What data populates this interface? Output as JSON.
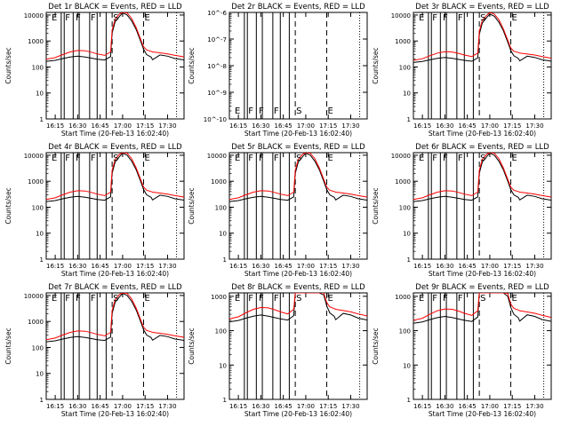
{
  "figure": {
    "panels": [
      {
        "title": "Det 1r BLACK = Events, RED = LLD",
        "ylabel": "Counts/sec",
        "xlabel": "Start Time (20-Feb-13 16:02:40)",
        "ytick_labels": [
          "1",
          "10",
          "100",
          "1000",
          "10000"
        ],
        "xtick_labels": [
          "16:15",
          "16:30",
          "16:45",
          "17:00",
          "17:15",
          "17:30"
        ],
        "markers": [
          "E",
          "F",
          "F",
          "F",
          "S",
          "E"
        ],
        "has_data": true,
        "bump": 1.0
      },
      {
        "title": "Det 2r BLACK = Events, RED = LLD",
        "ylabel": "Counts/sec",
        "xlabel": "Start Time (20-Feb-13 16:02:40)",
        "ytick_labels": [
          "10^-10",
          "10^-9",
          "10^-8",
          "10^-7",
          "10^-6"
        ],
        "xtick_labels": [
          "16:15",
          "16:30",
          "16:45",
          "17:00",
          "17:15",
          "17:30"
        ],
        "markers": [
          "E",
          "F",
          "F",
          "F",
          "S",
          "E"
        ],
        "has_data": false,
        "bump": 0
      },
      {
        "title": "Det 3r BLACK = Events, RED = LLD",
        "ylabel": "Counts/sec",
        "xlabel": "Start Time (20-Feb-13 16:02:40)",
        "ytick_labels": [
          "1",
          "10",
          "100",
          "1000",
          "10000"
        ],
        "xtick_labels": [
          "16:15",
          "16:30",
          "16:45",
          "17:00",
          "17:15",
          "17:30"
        ],
        "markers": [
          "E",
          "F",
          "F",
          "F",
          "S",
          "E"
        ],
        "has_data": true,
        "bump": 0.9
      },
      {
        "title": "Det 4r BLACK = Events, RED = LLD",
        "ylabel": "Counts/sec",
        "xlabel": "Start Time (20-Feb-13 16:02:40)",
        "ytick_labels": [
          "1",
          "10",
          "100",
          "1000",
          "10000"
        ],
        "xtick_labels": [
          "16:15",
          "16:30",
          "16:45",
          "17:00",
          "17:15",
          "17:30"
        ],
        "markers": [
          "E",
          "F",
          "F",
          "F",
          "S",
          "E"
        ],
        "has_data": true,
        "bump": 1.0
      },
      {
        "title": "Det 5r BLACK = Events, RED = LLD",
        "ylabel": "Counts/sec",
        "xlabel": "Start Time (20-Feb-13 16:02:40)",
        "ytick_labels": [
          "1",
          "10",
          "100",
          "1000",
          "10000"
        ],
        "xtick_labels": [
          "16:15",
          "16:30",
          "16:45",
          "17:00",
          "17:15",
          "17:30"
        ],
        "markers": [
          "E",
          "F",
          "F",
          "F",
          "S",
          "E"
        ],
        "has_data": true,
        "bump": 1.0
      },
      {
        "title": "Det 6r BLACK = Events, RED = LLD",
        "ylabel": "Counts/sec",
        "xlabel": "Start Time (20-Feb-13 16:02:40)",
        "ytick_labels": [
          "1",
          "10",
          "100",
          "1000",
          "10000"
        ],
        "xtick_labels": [
          "16:15",
          "16:30",
          "16:45",
          "17:00",
          "17:15",
          "17:30"
        ],
        "markers": [
          "E",
          "F",
          "F",
          "F",
          "S",
          "E"
        ],
        "has_data": true,
        "bump": 1.0
      },
      {
        "title": "Det 7r BLACK = Events, RED = LLD",
        "ylabel": "Counts/sec",
        "xlabel": "Start Time (20-Feb-13 16:02:40)",
        "ytick_labels": [
          "1",
          "10",
          "100",
          "1000",
          "10000"
        ],
        "xtick_labels": [
          "16:15",
          "16:30",
          "16:45",
          "17:00",
          "17:15",
          "17:30"
        ],
        "markers": [
          "E",
          "F",
          "F",
          "F",
          "S",
          "E"
        ],
        "has_data": true,
        "bump": 1.0
      },
      {
        "title": "Det 8r BLACK = Events, RED = LLD",
        "ylabel": "Counts/sec",
        "xlabel": "Start Time (20-Feb-13 16:02:40)",
        "ytick_labels": [
          "1",
          "10",
          "100",
          "1000"
        ],
        "xtick_labels": [
          "16:15",
          "16:30",
          "16:45",
          "17:00",
          "17:15",
          "17:30"
        ],
        "markers": [
          "E",
          "F",
          "F",
          "F",
          "S",
          "E"
        ],
        "has_data": true,
        "bump": 1.1
      },
      {
        "title": "Det 9r BLACK = Events, RED = LLD",
        "ylabel": "Counts/sec",
        "xlabel": "Start Time (20-Feb-13 16:02:40)",
        "ytick_labels": [
          "1",
          "10",
          "100",
          "1000"
        ],
        "xtick_labels": [
          "16:15",
          "16:30",
          "16:45",
          "17:00",
          "17:15",
          "17:30"
        ],
        "markers": [
          "E",
          "F",
          "F",
          "F",
          "S",
          "E"
        ],
        "has_data": true,
        "bump": 1.0
      }
    ]
  },
  "chart_data": {
    "type": "line",
    "layout": "3x3 grid",
    "x_unit": "time (HH:MM, 20-Feb-13)",
    "x_range": [
      "16:09",
      "17:41"
    ],
    "y_scale": "log",
    "ylim_log10_standard": [
      0,
      4.1
    ],
    "ylim_log10_det8_det9": [
      0,
      3.1
    ],
    "ylim_log10_det2": [
      -10,
      -6
    ],
    "colors": {
      "events": "#000000",
      "lld": "#ff0000"
    },
    "vertical_lines": {
      "solid": [
        "16:19",
        "16:21",
        "16:27",
        "16:31",
        "16:38",
        "16:43",
        "16:49"
      ],
      "dashed": [
        "16:53",
        "17:14"
      ],
      "dotted": [
        "17:36",
        "17:41"
      ]
    },
    "markers": [
      {
        "label": "E",
        "time": "16:12"
      },
      {
        "label": "F",
        "time": "16:21"
      },
      {
        "label": "F",
        "time": "16:28"
      },
      {
        "label": "F",
        "time": "16:38"
      },
      {
        "label": "S",
        "time": "16:53"
      },
      {
        "label": "E",
        "time": "17:14"
      }
    ],
    "series_events": {
      "time": [
        "16:09",
        "16:15",
        "16:20",
        "16:25",
        "16:30",
        "16:35",
        "16:40",
        "16:43",
        "16:48",
        "16:52",
        "16:53",
        "16:55",
        "16:58",
        "17:00",
        "17:03",
        "17:06",
        "17:09",
        "17:12",
        "17:14",
        "17:16",
        "17:19",
        "17:20",
        "17:25",
        "17:30",
        "17:35",
        "17:40",
        "17:41"
      ],
      "counts_per_sec": [
        165,
        180,
        210,
        240,
        260,
        240,
        215,
        200,
        185,
        250,
        2000,
        5500,
        9000,
        12000,
        10000,
        6000,
        2800,
        1000,
        480,
        300,
        240,
        190,
        290,
        260,
        210,
        190,
        185
      ]
    },
    "series_lld": {
      "time": [
        "16:09",
        "16:15",
        "16:20",
        "16:25",
        "16:30",
        "16:35",
        "16:40",
        "16:43",
        "16:48",
        "16:52",
        "16:53",
        "16:55",
        "16:58",
        "17:00",
        "17:03",
        "17:06",
        "17:09",
        "17:12",
        "17:14",
        "17:16",
        "17:19",
        "17:20",
        "17:25",
        "17:30",
        "17:35",
        "17:40",
        "17:41"
      ],
      "counts_per_sec": [
        200,
        230,
        300,
        380,
        430,
        420,
        360,
        320,
        280,
        380,
        2600,
        7000,
        11000,
        15000,
        12000,
        7500,
        3300,
        1200,
        600,
        450,
        400,
        380,
        350,
        320,
        280,
        250,
        240
      ]
    }
  }
}
